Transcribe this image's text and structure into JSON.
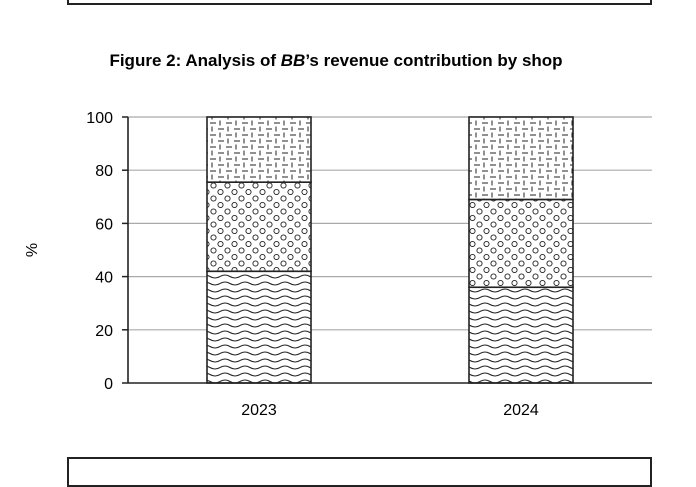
{
  "chart_data": {
    "type": "bar",
    "stacked": true,
    "title": {
      "prefix": "Figure 2: Analysis of ",
      "italic": "BB",
      "suffix": "’s revenue contribution by shop"
    },
    "ylabel": "%",
    "xlabel": "",
    "ylim": [
      0,
      100
    ],
    "yticks": [
      0,
      20,
      40,
      60,
      80,
      100
    ],
    "grid": true,
    "categories": [
      "2023",
      "2024"
    ],
    "series": [
      {
        "name": "",
        "pattern": "waves",
        "values": [
          42,
          36
        ]
      },
      {
        "name": "",
        "pattern": "circles",
        "values": [
          33.5,
          33
        ]
      },
      {
        "name": "",
        "pattern": "dashes",
        "values": [
          24.5,
          31
        ]
      }
    ]
  }
}
